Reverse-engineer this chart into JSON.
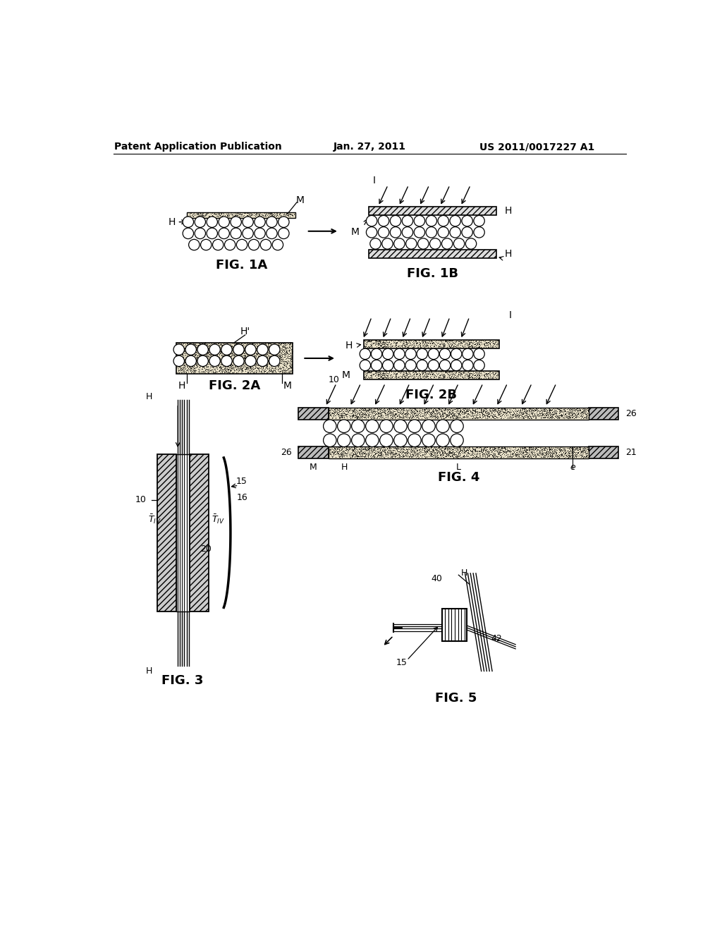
{
  "header_left": "Patent Application Publication",
  "header_center": "Jan. 27, 2011",
  "header_right": "US 2011/0017227 A1",
  "bg_color": "#ffffff"
}
